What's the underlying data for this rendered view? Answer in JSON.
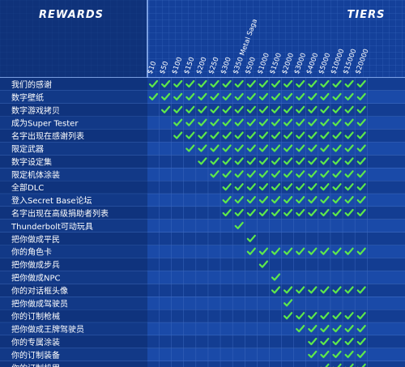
{
  "header": {
    "rewards": "REWARDS",
    "tiers": "TIERS"
  },
  "tiers": [
    "$10",
    "$50",
    "$100",
    "$150",
    "$200",
    "$250",
    "$300",
    "$350 Metal Saga",
    "$500",
    "$1000",
    "$1500",
    "$2000",
    "$3000",
    "$4000",
    "$5000",
    "$10000",
    "$15000",
    "$20000"
  ],
  "rows": [
    {
      "label": "我们的感谢",
      "checks": [
        true,
        true,
        true,
        true,
        true,
        true,
        true,
        true,
        true,
        true,
        true,
        true,
        true,
        true,
        true,
        true,
        true,
        true
      ]
    },
    {
      "label": "数字壁纸",
      "checks": [
        true,
        true,
        true,
        true,
        true,
        true,
        true,
        true,
        true,
        true,
        true,
        true,
        true,
        true,
        true,
        true,
        true,
        true
      ]
    },
    {
      "label": "数字游戏拷贝",
      "checks": [
        false,
        true,
        true,
        true,
        true,
        true,
        true,
        true,
        true,
        true,
        true,
        true,
        true,
        true,
        true,
        true,
        true,
        true
      ]
    },
    {
      "label": "成为Super Tester",
      "checks": [
        false,
        false,
        true,
        true,
        true,
        true,
        true,
        true,
        true,
        true,
        true,
        true,
        true,
        true,
        true,
        true,
        true,
        true
      ]
    },
    {
      "label": "名字出现在感谢列表",
      "checks": [
        false,
        false,
        true,
        true,
        true,
        true,
        true,
        true,
        true,
        true,
        true,
        true,
        true,
        true,
        true,
        true,
        true,
        true
      ]
    },
    {
      "label": "限定武器",
      "checks": [
        false,
        false,
        false,
        true,
        true,
        true,
        true,
        true,
        true,
        true,
        true,
        true,
        true,
        true,
        true,
        true,
        true,
        true
      ]
    },
    {
      "label": "数字设定集",
      "checks": [
        false,
        false,
        false,
        false,
        true,
        true,
        true,
        true,
        true,
        true,
        true,
        true,
        true,
        true,
        true,
        true,
        true,
        true
      ]
    },
    {
      "label": "限定机体涂装",
      "checks": [
        false,
        false,
        false,
        false,
        false,
        true,
        true,
        true,
        true,
        true,
        true,
        true,
        true,
        true,
        true,
        true,
        true,
        true
      ]
    },
    {
      "label": "全部DLC",
      "checks": [
        false,
        false,
        false,
        false,
        false,
        false,
        true,
        true,
        true,
        true,
        true,
        true,
        true,
        true,
        true,
        true,
        true,
        true
      ]
    },
    {
      "label": "登入Secret Base论坛",
      "checks": [
        false,
        false,
        false,
        false,
        false,
        false,
        true,
        true,
        true,
        true,
        true,
        true,
        true,
        true,
        true,
        true,
        true,
        true
      ]
    },
    {
      "label": "名字出现在高级捐助者列表",
      "checks": [
        false,
        false,
        false,
        false,
        false,
        false,
        true,
        true,
        true,
        true,
        true,
        true,
        true,
        true,
        true,
        true,
        true,
        true
      ]
    },
    {
      "label": "Thunderbolt可动玩具",
      "checks": [
        false,
        false,
        false,
        false,
        false,
        false,
        false,
        true,
        false,
        false,
        false,
        false,
        false,
        false,
        false,
        false,
        false,
        false
      ]
    },
    {
      "label": "把你做成平民",
      "checks": [
        false,
        false,
        false,
        false,
        false,
        false,
        false,
        false,
        true,
        false,
        false,
        false,
        false,
        false,
        false,
        false,
        false,
        false
      ]
    },
    {
      "label": "你的角色卡",
      "checks": [
        false,
        false,
        false,
        false,
        false,
        false,
        false,
        false,
        true,
        true,
        true,
        true,
        true,
        true,
        true,
        true,
        true,
        true
      ]
    },
    {
      "label": "把你做成步兵",
      "checks": [
        false,
        false,
        false,
        false,
        false,
        false,
        false,
        false,
        false,
        true,
        false,
        false,
        false,
        false,
        false,
        false,
        false,
        false
      ]
    },
    {
      "label": "把你做成NPC",
      "checks": [
        false,
        false,
        false,
        false,
        false,
        false,
        false,
        false,
        false,
        false,
        true,
        false,
        false,
        false,
        false,
        false,
        false,
        false
      ]
    },
    {
      "label": "你的对话框头像",
      "checks": [
        false,
        false,
        false,
        false,
        false,
        false,
        false,
        false,
        false,
        false,
        true,
        true,
        true,
        true,
        true,
        true,
        true,
        true
      ]
    },
    {
      "label": "把你做成驾驶员",
      "checks": [
        false,
        false,
        false,
        false,
        false,
        false,
        false,
        false,
        false,
        false,
        false,
        true,
        false,
        false,
        false,
        false,
        false,
        false
      ]
    },
    {
      "label": "你的订制枪械",
      "checks": [
        false,
        false,
        false,
        false,
        false,
        false,
        false,
        false,
        false,
        false,
        false,
        true,
        true,
        true,
        true,
        true,
        true,
        true
      ]
    },
    {
      "label": "把你做成王牌驾驶员",
      "checks": [
        false,
        false,
        false,
        false,
        false,
        false,
        false,
        false,
        false,
        false,
        false,
        false,
        true,
        true,
        true,
        true,
        true,
        true
      ]
    },
    {
      "label": "你的专属涂装",
      "checks": [
        false,
        false,
        false,
        false,
        false,
        false,
        false,
        false,
        false,
        false,
        false,
        false,
        false,
        true,
        true,
        true,
        true,
        true
      ]
    },
    {
      "label": "你的订制装备",
      "checks": [
        false,
        false,
        false,
        false,
        false,
        false,
        false,
        false,
        false,
        false,
        false,
        false,
        false,
        true,
        true,
        true,
        true,
        true
      ]
    },
    {
      "label": "你的订制机甲",
      "checks": [
        false,
        false,
        false,
        false,
        false,
        false,
        false,
        false,
        false,
        false,
        false,
        false,
        false,
        false,
        true,
        true,
        true,
        true
      ]
    }
  ]
}
